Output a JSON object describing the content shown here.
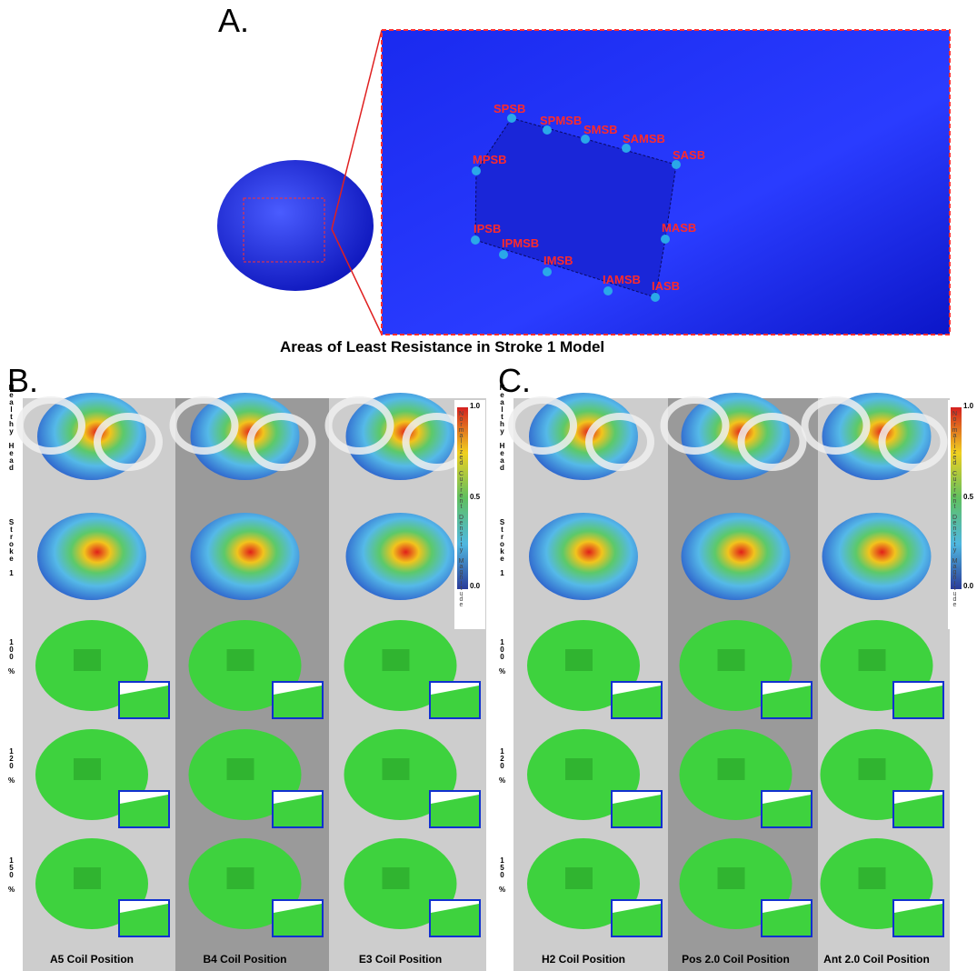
{
  "panel_a": {
    "label": "A.",
    "points": [
      "SPSB",
      "SPMSB",
      "SMSB",
      "SAMSB",
      "SASB",
      "MPSB",
      "IPSB",
      "IPMSB",
      "IMSB",
      "IAMSB",
      "IASB",
      "MASB"
    ],
    "caption": "Areas of Least Resistance in Stroke 1 Model"
  },
  "panel_b": {
    "label": "B.",
    "columns": [
      "A5 Coil Position",
      "B4 Coil Position",
      "E3 Coil Position"
    ]
  },
  "panel_c": {
    "label": "C.",
    "columns": [
      "H2 Coil Position",
      "Pos 2.0 Coil Position",
      "Ant 2.0 Coil Position"
    ]
  },
  "row_labels": [
    "Healthy Head",
    "Stroke 1",
    "100 %",
    "120 %",
    "150 %"
  ],
  "colorbar": {
    "title": "Normalized Current Density Magnitude",
    "ticks": [
      "1.0",
      "0.5",
      "0.0"
    ]
  }
}
